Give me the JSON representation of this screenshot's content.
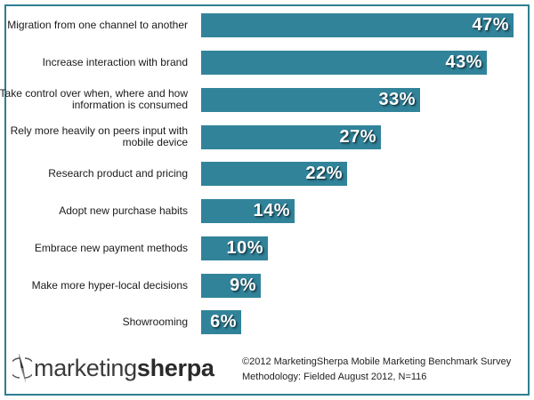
{
  "chart_data": {
    "type": "bar",
    "orientation": "horizontal",
    "title": "",
    "xlabel": "",
    "ylabel": "",
    "grid": false,
    "legend": null,
    "value_format": "percent",
    "bar_color": "#31839a",
    "categories": [
      "Migration from one channel to another",
      "Increase interaction with brand",
      "Take control over when, where and how information is consumed",
      "Rely more heavily on peers input with mobile device",
      "Research product and pricing",
      "Adopt new purchase habits",
      "Embrace new payment methods",
      "Make more hyper-local decisions",
      "Showrooming"
    ],
    "values": [
      47,
      43,
      33,
      27,
      22,
      14,
      10,
      9,
      6
    ],
    "xlim": [
      0,
      47
    ]
  },
  "rows": [
    {
      "label": "Migration from one channel to another",
      "value_label": "47%"
    },
    {
      "label": "Increase interaction with brand",
      "value_label": "43%"
    },
    {
      "label": "Take control over when, where and how information is consumed",
      "value_label": "33%"
    },
    {
      "label": "Rely more heavily on peers input with mobile device",
      "value_label": "27%"
    },
    {
      "label": "Research product and pricing",
      "value_label": "22%"
    },
    {
      "label": "Adopt new purchase habits",
      "value_label": "14%"
    },
    {
      "label": "Embrace new payment methods",
      "value_label": "10%"
    },
    {
      "label": "Make more hyper-local decisions",
      "value_label": "9%"
    },
    {
      "label": "Showrooming",
      "value_label": "6%"
    }
  ],
  "footer": {
    "logo": {
      "light": "marketing",
      "bold": "sherpa",
      "icon": "compass-needle-icon"
    },
    "copyright": "©2012 MarketingSherpa Mobile Marketing Benchmark Survey",
    "methodology": "Methodology: Fielded August 2012, N=116"
  },
  "colors": {
    "accent": "#2e7f92",
    "bar": "#31839a",
    "text": "#1a1a1a"
  }
}
